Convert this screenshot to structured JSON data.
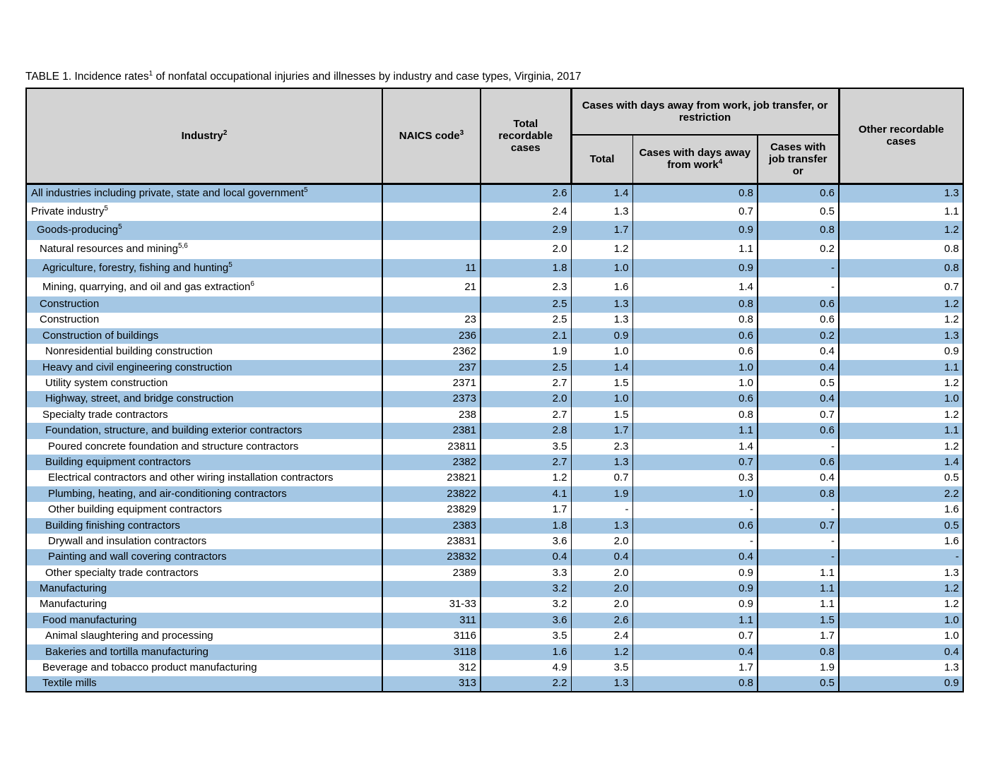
{
  "title": {
    "prefix": "TABLE 1. Incidence rates",
    "sup": "1",
    "suffix": " of nonfatal occupational injuries and illnesses by industry and case types, Virginia, 2017"
  },
  "header": {
    "industry_label": "Industry",
    "industry_sup": "2",
    "naics_label": "NAICS code",
    "naics_sup": "3",
    "total_recordable_label": "Total recordable cases",
    "group_label": "Cases with days away from work, job transfer, or restriction",
    "sub_total_label": "Total",
    "sub_days_away_label": "Cases with days away from work",
    "sub_days_away_sup": "4",
    "sub_job_transfer_label": "Cases with job transfer or",
    "other_recordable_label": "Other recordable cases"
  },
  "colors": {
    "row_blue": "#a4c7e4",
    "header_grey": "#d3d3d3"
  },
  "rows": [
    {
      "name": "All industries including private, state and local government",
      "sup": "5",
      "indent": 0,
      "naics": "",
      "total_recordable": "2.6",
      "total": "1.4",
      "days_away": "0.8",
      "job_transfer": "0.6",
      "other": "1.3"
    },
    {
      "name": "Private industry",
      "sup": "5",
      "indent": 0,
      "naics": "",
      "total_recordable": "2.4",
      "total": "1.3",
      "days_away": "0.7",
      "job_transfer": "0.5",
      "other": "1.1"
    },
    {
      "name": "Goods-producing",
      "sup": "5",
      "indent": 1,
      "naics": "",
      "total_recordable": "2.9",
      "total": "1.7",
      "days_away": "0.9",
      "job_transfer": "0.8",
      "other": "1.2"
    },
    {
      "name": "Natural resources and mining",
      "sup": "5,6",
      "indent": 2,
      "naics": "",
      "total_recordable": "2.0",
      "total": "1.2",
      "days_away": "1.1",
      "job_transfer": "0.2",
      "other": "0.8"
    },
    {
      "name": "Agriculture, forestry, fishing and hunting",
      "sup": "5",
      "indent": 3,
      "naics": "11",
      "total_recordable": "1.8",
      "total": "1.0",
      "days_away": "0.9",
      "job_transfer": "-",
      "other": "0.8"
    },
    {
      "name": "Mining, quarrying, and oil and gas extraction",
      "sup": "6",
      "indent": 3,
      "naics": "21",
      "total_recordable": "2.3",
      "total": "1.6",
      "days_away": "1.4",
      "job_transfer": "-",
      "other": "0.7"
    },
    {
      "name": "Construction",
      "sup": "",
      "indent": 2,
      "naics": "",
      "total_recordable": "2.5",
      "total": "1.3",
      "days_away": "0.8",
      "job_transfer": "0.6",
      "other": "1.2"
    },
    {
      "name": "Construction",
      "sup": "",
      "indent": 2,
      "naics": "23",
      "total_recordable": "2.5",
      "total": "1.3",
      "days_away": "0.8",
      "job_transfer": "0.6",
      "other": "1.2"
    },
    {
      "name": "Construction of buildings",
      "sup": "",
      "indent": 3,
      "naics": "236",
      "total_recordable": "2.1",
      "total": "0.9",
      "days_away": "0.6",
      "job_transfer": "0.2",
      "other": "1.3"
    },
    {
      "name": "Nonresidential building construction",
      "sup": "",
      "indent": 4,
      "naics": "2362",
      "total_recordable": "1.9",
      "total": "1.0",
      "days_away": "0.6",
      "job_transfer": "0.4",
      "other": "0.9"
    },
    {
      "name": "Heavy and civil engineering construction",
      "sup": "",
      "indent": 3,
      "naics": "237",
      "total_recordable": "2.5",
      "total": "1.4",
      "days_away": "1.0",
      "job_transfer": "0.4",
      "other": "1.1"
    },
    {
      "name": "Utility system construction",
      "sup": "",
      "indent": 4,
      "naics": "2371",
      "total_recordable": "2.7",
      "total": "1.5",
      "days_away": "1.0",
      "job_transfer": "0.5",
      "other": "1.2"
    },
    {
      "name": "Highway, street, and bridge construction",
      "sup": "",
      "indent": 4,
      "naics": "2373",
      "total_recordable": "2.0",
      "total": "1.0",
      "days_away": "0.6",
      "job_transfer": "0.4",
      "other": "1.0"
    },
    {
      "name": "Specialty trade contractors",
      "sup": "",
      "indent": 3,
      "naics": "238",
      "total_recordable": "2.7",
      "total": "1.5",
      "days_away": "0.8",
      "job_transfer": "0.7",
      "other": "1.2"
    },
    {
      "name": "Foundation, structure, and building exterior contractors",
      "sup": "",
      "indent": 4,
      "naics": "2381",
      "total_recordable": "2.8",
      "total": "1.7",
      "days_away": "1.1",
      "job_transfer": "0.6",
      "other": "1.1"
    },
    {
      "name": "Poured concrete foundation and structure contractors",
      "sup": "",
      "indent": 5,
      "naics": "23811",
      "total_recordable": "3.5",
      "total": "2.3",
      "days_away": "1.4",
      "job_transfer": "-",
      "other": "1.2"
    },
    {
      "name": "Building equipment contractors",
      "sup": "",
      "indent": 4,
      "naics": "2382",
      "total_recordable": "2.7",
      "total": "1.3",
      "days_away": "0.7",
      "job_transfer": "0.6",
      "other": "1.4"
    },
    {
      "name": "Electrical contractors and other wiring installation contractors",
      "sup": "",
      "indent": 5,
      "naics": "23821",
      "total_recordable": "1.2",
      "total": "0.7",
      "days_away": "0.3",
      "job_transfer": "0.4",
      "other": "0.5"
    },
    {
      "name": "Plumbing, heating, and air-conditioning contractors",
      "sup": "",
      "indent": 5,
      "naics": "23822",
      "total_recordable": "4.1",
      "total": "1.9",
      "days_away": "1.0",
      "job_transfer": "0.8",
      "other": "2.2"
    },
    {
      "name": "Other building equipment contractors",
      "sup": "",
      "indent": 5,
      "naics": "23829",
      "total_recordable": "1.7",
      "total": "-",
      "days_away": "-",
      "job_transfer": "-",
      "other": "1.6"
    },
    {
      "name": "Building finishing contractors",
      "sup": "",
      "indent": 4,
      "naics": "2383",
      "total_recordable": "1.8",
      "total": "1.3",
      "days_away": "0.6",
      "job_transfer": "0.7",
      "other": "0.5"
    },
    {
      "name": "Drywall and insulation contractors",
      "sup": "",
      "indent": 5,
      "naics": "23831",
      "total_recordable": "3.6",
      "total": "2.0",
      "days_away": "-",
      "job_transfer": "-",
      "other": "1.6"
    },
    {
      "name": "Painting and wall covering contractors",
      "sup": "",
      "indent": 5,
      "naics": "23832",
      "total_recordable": "0.4",
      "total": "0.4",
      "days_away": "0.4",
      "job_transfer": "-",
      "other": "-"
    },
    {
      "name": "Other specialty trade contractors",
      "sup": "",
      "indent": 4,
      "naics": "2389",
      "total_recordable": "3.3",
      "total": "2.0",
      "days_away": "0.9",
      "job_transfer": "1.1",
      "other": "1.3"
    },
    {
      "name": "Manufacturing",
      "sup": "",
      "indent": 2,
      "naics": "",
      "total_recordable": "3.2",
      "total": "2.0",
      "days_away": "0.9",
      "job_transfer": "1.1",
      "other": "1.2"
    },
    {
      "name": "Manufacturing",
      "sup": "",
      "indent": 2,
      "naics": "31-33",
      "total_recordable": "3.2",
      "total": "2.0",
      "days_away": "0.9",
      "job_transfer": "1.1",
      "other": "1.2"
    },
    {
      "name": "Food manufacturing",
      "sup": "",
      "indent": 3,
      "naics": "311",
      "total_recordable": "3.6",
      "total": "2.6",
      "days_away": "1.1",
      "job_transfer": "1.5",
      "other": "1.0"
    },
    {
      "name": "Animal slaughtering and processing",
      "sup": "",
      "indent": 4,
      "naics": "3116",
      "total_recordable": "3.5",
      "total": "2.4",
      "days_away": "0.7",
      "job_transfer": "1.7",
      "other": "1.0"
    },
    {
      "name": "Bakeries and tortilla manufacturing",
      "sup": "",
      "indent": 4,
      "naics": "3118",
      "total_recordable": "1.6",
      "total": "1.2",
      "days_away": "0.4",
      "job_transfer": "0.8",
      "other": "0.4"
    },
    {
      "name": "Beverage and tobacco product manufacturing",
      "sup": "",
      "indent": 3,
      "naics": "312",
      "total_recordable": "4.9",
      "total": "3.5",
      "days_away": "1.7",
      "job_transfer": "1.9",
      "other": "1.3"
    },
    {
      "name": "Textile mills",
      "sup": "",
      "indent": 3,
      "naics": "313",
      "total_recordable": "2.2",
      "total": "1.3",
      "days_away": "0.8",
      "job_transfer": "0.5",
      "other": "0.9"
    }
  ]
}
